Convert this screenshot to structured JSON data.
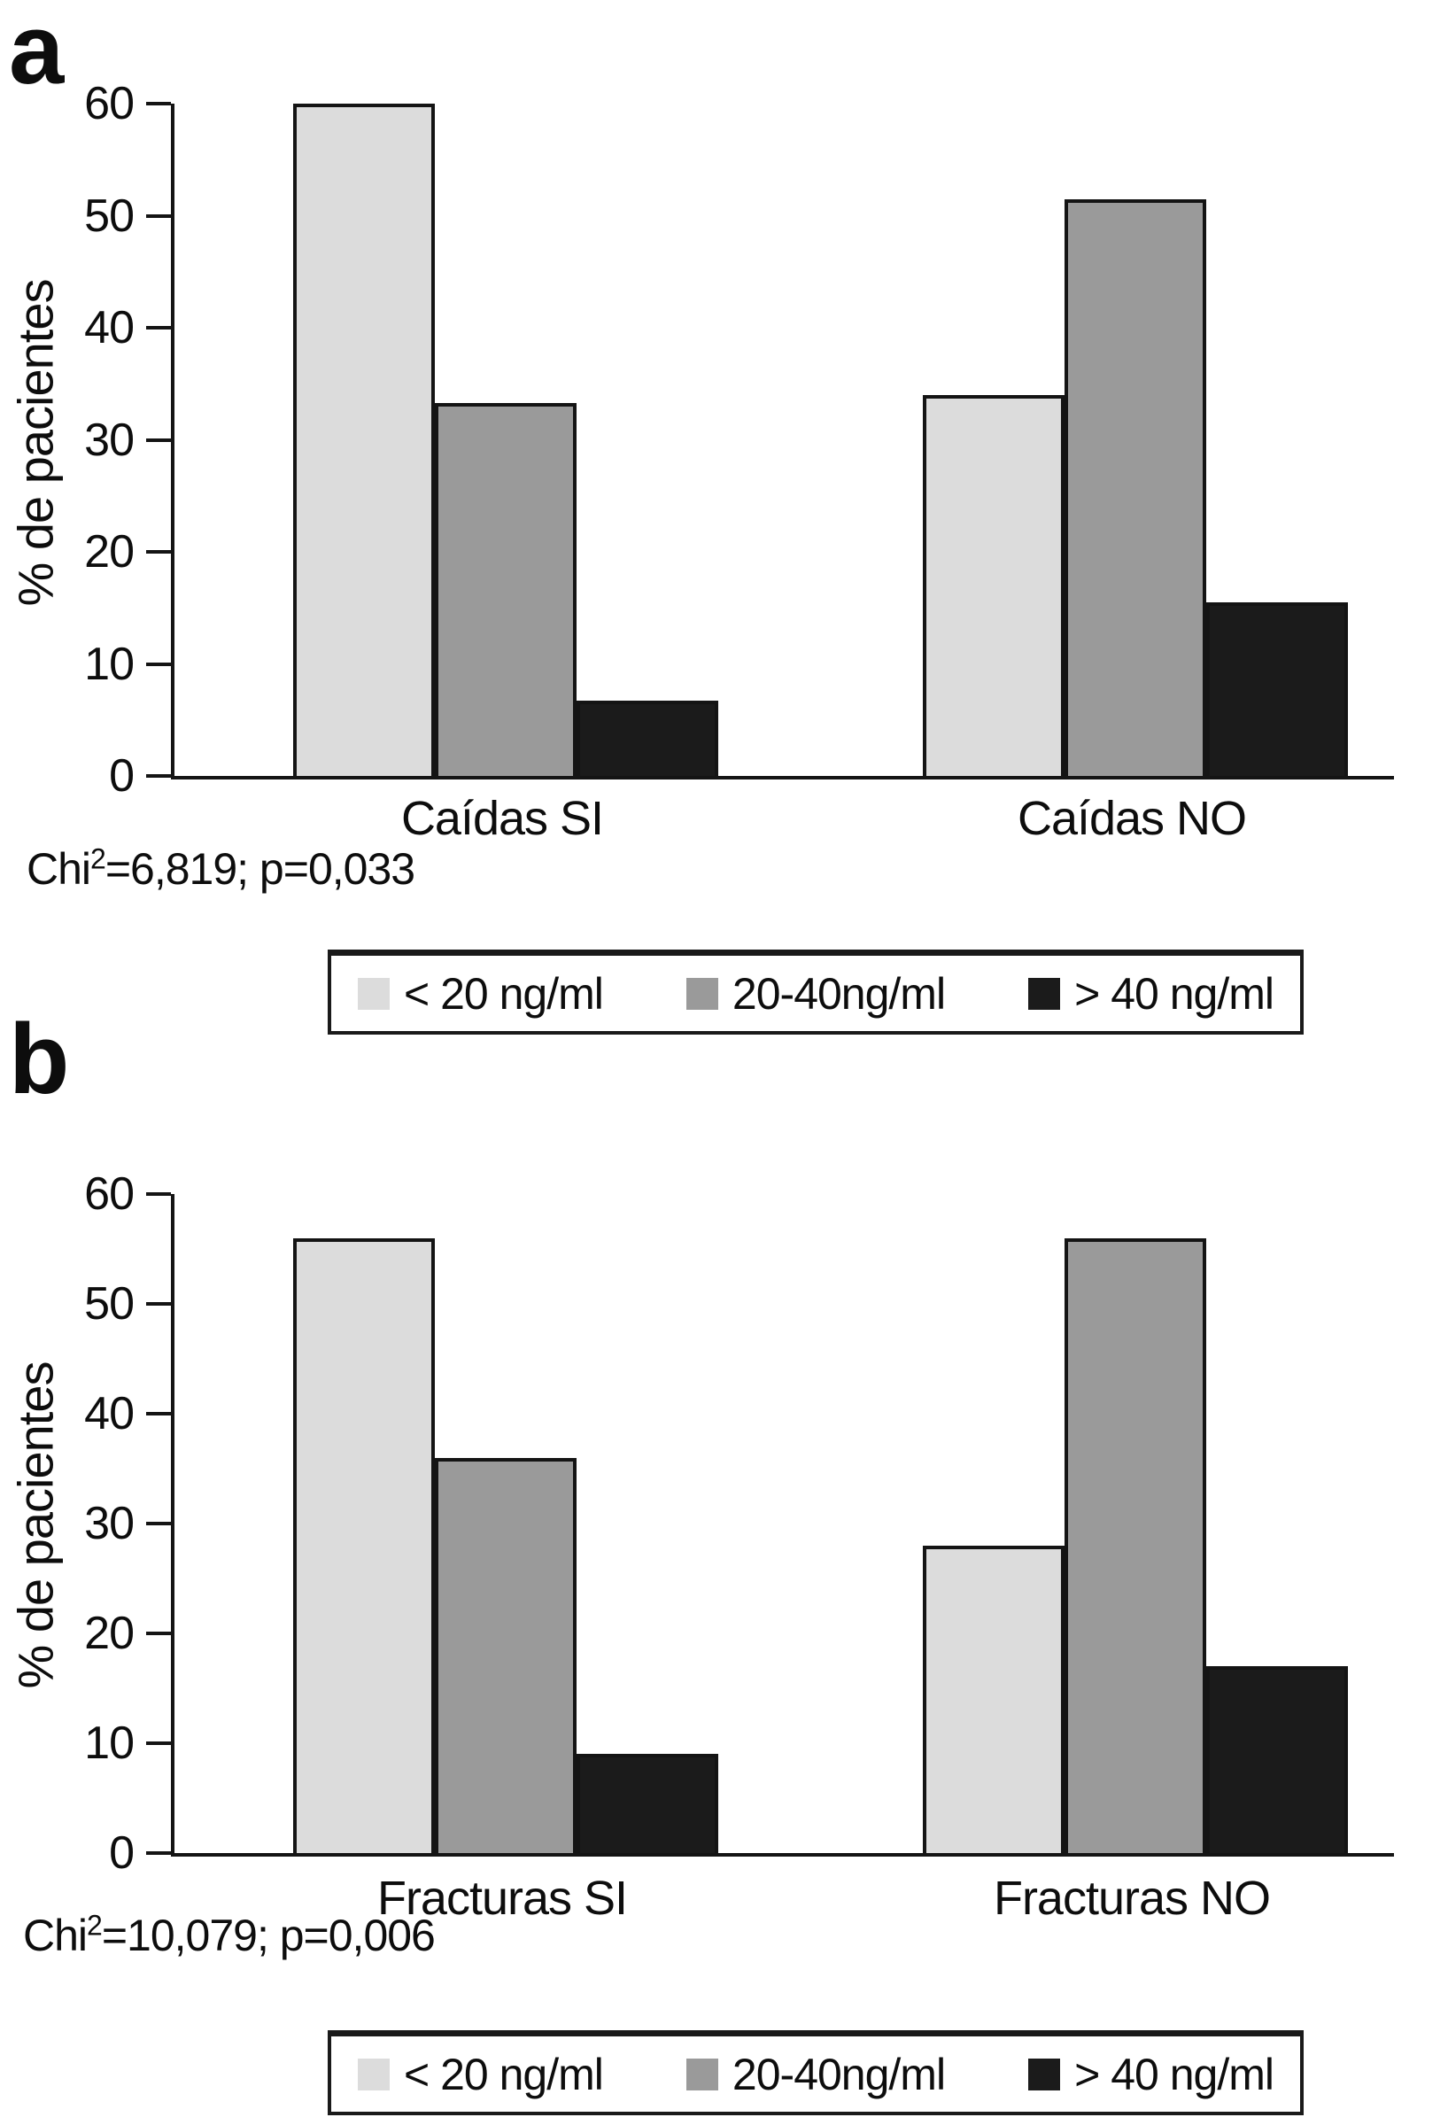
{
  "chart_data": [
    {
      "type": "bar",
      "panel_label": "a",
      "title": "",
      "xlabel": "",
      "ylabel": "% de pacientes",
      "ylim": [
        0,
        60
      ],
      "yticks": [
        60,
        50,
        40,
        30,
        20,
        10,
        0
      ],
      "grid": false,
      "legend_position": "bottom",
      "categories": [
        "Caídas SI",
        "Caídas NO"
      ],
      "series": [
        {
          "name": "< 20 ng/ml",
          "color": "#dcdcdc",
          "values": [
            60,
            34
          ]
        },
        {
          "name": "20-40ng/ml",
          "color": "#9a9a9a",
          "values": [
            33.3,
            51.5
          ]
        },
        {
          "name": "> 40 ng/ml",
          "color": "#1b1b1b",
          "values": [
            6.7,
            15.5
          ]
        }
      ],
      "annotation": {
        "base": "Chi",
        "sup": "2",
        "rest": "=6,819; p=0,033"
      }
    },
    {
      "type": "bar",
      "panel_label": "b",
      "title": "",
      "xlabel": "",
      "ylabel": "% de pacientes",
      "ylim": [
        0,
        60
      ],
      "yticks": [
        60,
        50,
        40,
        30,
        20,
        10,
        0
      ],
      "grid": false,
      "legend_position": "bottom",
      "categories": [
        "Fracturas SI",
        "Fracturas NO"
      ],
      "series": [
        {
          "name": "< 20 ng/ml",
          "color": "#dcdcdc",
          "values": [
            56,
            28
          ]
        },
        {
          "name": "20-40ng/ml",
          "color": "#9a9a9a",
          "values": [
            36,
            56
          ]
        },
        {
          "name": "> 40 ng/ml",
          "color": "#1b1b1b",
          "values": [
            9,
            17
          ]
        }
      ],
      "annotation": {
        "base": "Chi",
        "sup": "2",
        "rest": "=10,079; p=0,006"
      }
    }
  ]
}
